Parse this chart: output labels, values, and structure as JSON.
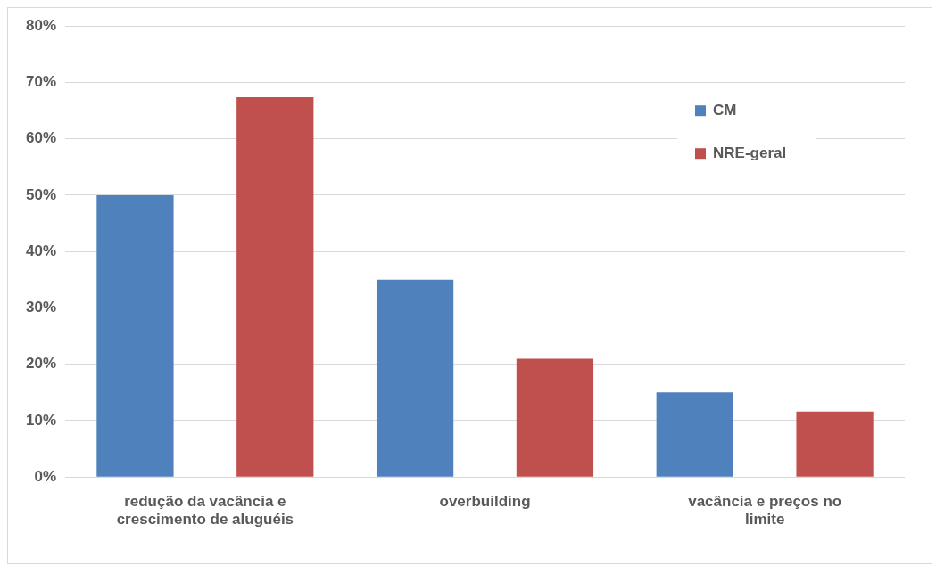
{
  "chart_data": {
    "type": "bar",
    "categories": [
      "redução da vacância e crescimento de aluguéis",
      "overbuilding",
      "vacância e preços no limite"
    ],
    "series": [
      {
        "name": "CM",
        "color": "#4f81bd",
        "values": [
          50,
          35,
          15
        ]
      },
      {
        "name": "NRE-geral",
        "color": "#c0504d",
        "values": [
          67.4,
          21,
          11.6
        ]
      }
    ],
    "ylim": [
      0,
      80
    ],
    "yticks": [
      {
        "value": 0,
        "label": "0%"
      },
      {
        "value": 10,
        "label": "10%"
      },
      {
        "value": 20,
        "label": "20%"
      },
      {
        "value": 30,
        "label": "30%"
      },
      {
        "value": 40,
        "label": "40%"
      },
      {
        "value": 50,
        "label": "50%"
      },
      {
        "value": 60,
        "label": "60%"
      },
      {
        "value": 70,
        "label": "70%"
      },
      {
        "value": 80,
        "label": "80%"
      }
    ],
    "grid": "y",
    "legend": "top right"
  }
}
